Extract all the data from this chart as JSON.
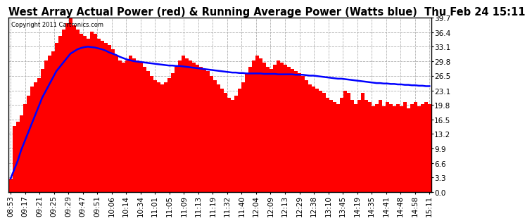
{
  "title": "West Array Actual Power (red) & Running Average Power (Watts blue)  Thu Feb 24 15:11",
  "copyright": "Copyright 2011 Cartronics.com",
  "ymin": 0.0,
  "ymax": 39.7,
  "yticks": [
    0.0,
    3.3,
    6.6,
    9.9,
    13.2,
    16.5,
    19.8,
    23.1,
    26.5,
    29.8,
    33.1,
    36.4,
    39.7
  ],
  "xtick_labels": [
    "08:53",
    "09:17",
    "09:21",
    "09:25",
    "09:29",
    "09:47",
    "09:51",
    "10:06",
    "10:14",
    "10:34",
    "11:01",
    "11:05",
    "11:09",
    "11:13",
    "11:19",
    "11:32",
    "11:40",
    "12:04",
    "12:09",
    "12:13",
    "12:29",
    "12:38",
    "13:10",
    "13:45",
    "14:19",
    "14:35",
    "14:41",
    "14:48",
    "14:58",
    "15:11"
  ],
  "bar_color": "#ff0000",
  "line_color": "#0000ff",
  "background_color": "#ffffff",
  "grid_color": "#b0b0b0",
  "title_fontsize": 10.5,
  "tick_fontsize": 7.5,
  "bar_values": [
    3.0,
    15.0,
    16.0,
    17.5,
    20.0,
    22.0,
    24.0,
    25.0,
    26.0,
    28.0,
    30.0,
    31.0,
    32.0,
    34.0,
    35.5,
    37.0,
    38.5,
    39.5,
    38.0,
    37.0,
    36.0,
    35.5,
    35.0,
    36.5,
    36.0,
    35.0,
    34.5,
    34.0,
    33.5,
    32.5,
    31.0,
    30.0,
    29.5,
    30.0,
    31.0,
    30.5,
    30.0,
    29.5,
    28.5,
    27.5,
    26.5,
    25.5,
    25.0,
    24.5,
    25.0,
    26.0,
    27.0,
    28.5,
    30.0,
    31.0,
    30.5,
    30.0,
    29.5,
    29.0,
    28.5,
    28.0,
    27.5,
    26.5,
    25.5,
    24.5,
    23.5,
    22.5,
    21.5,
    21.0,
    22.0,
    23.5,
    25.0,
    27.0,
    28.5,
    30.0,
    31.0,
    30.5,
    29.5,
    28.5,
    28.0,
    29.0,
    30.0,
    29.5,
    29.0,
    28.5,
    28.0,
    27.5,
    27.0,
    26.5,
    25.5,
    24.5,
    24.0,
    23.5,
    23.0,
    22.5,
    21.5,
    21.0,
    20.5,
    20.0,
    21.5,
    23.0,
    22.5,
    21.0,
    20.0,
    21.0,
    22.5,
    21.0,
    20.5,
    19.5,
    20.0,
    21.0,
    19.5,
    20.5,
    20.0,
    19.5,
    20.0,
    19.5,
    20.5,
    19.0,
    20.0,
    20.5,
    19.5,
    20.0,
    20.5,
    20.0
  ],
  "avg_values": [
    3.0,
    5.0,
    7.0,
    9.5,
    11.5,
    13.5,
    15.5,
    17.5,
    19.5,
    21.5,
    23.0,
    24.5,
    26.0,
    27.5,
    28.5,
    29.5,
    30.5,
    31.5,
    32.0,
    32.5,
    32.8,
    33.0,
    33.1,
    33.0,
    32.9,
    32.7,
    32.5,
    32.2,
    31.8,
    31.5,
    31.2,
    30.8,
    30.5,
    30.2,
    30.0,
    29.8,
    29.7,
    29.6,
    29.5,
    29.4,
    29.3,
    29.2,
    29.1,
    29.0,
    28.9,
    28.8,
    28.8,
    28.7,
    28.7,
    28.6,
    28.5,
    28.4,
    28.3,
    28.2,
    28.1,
    28.0,
    27.9,
    27.8,
    27.7,
    27.6,
    27.5,
    27.4,
    27.3,
    27.2,
    27.2,
    27.1,
    27.1,
    27.0,
    27.0,
    27.0,
    27.0,
    27.0,
    26.9,
    26.9,
    26.9,
    26.9,
    26.8,
    26.8,
    26.8,
    26.8,
    26.8,
    26.7,
    26.7,
    26.7,
    26.6,
    26.5,
    26.5,
    26.4,
    26.3,
    26.2,
    26.1,
    26.0,
    25.9,
    25.8,
    25.8,
    25.7,
    25.6,
    25.5,
    25.4,
    25.3,
    25.2,
    25.1,
    25.0,
    24.9,
    24.8,
    24.8,
    24.7,
    24.7,
    24.6,
    24.6,
    24.5,
    24.5,
    24.4,
    24.4,
    24.3,
    24.3,
    24.2,
    24.2,
    24.1,
    24.1
  ]
}
